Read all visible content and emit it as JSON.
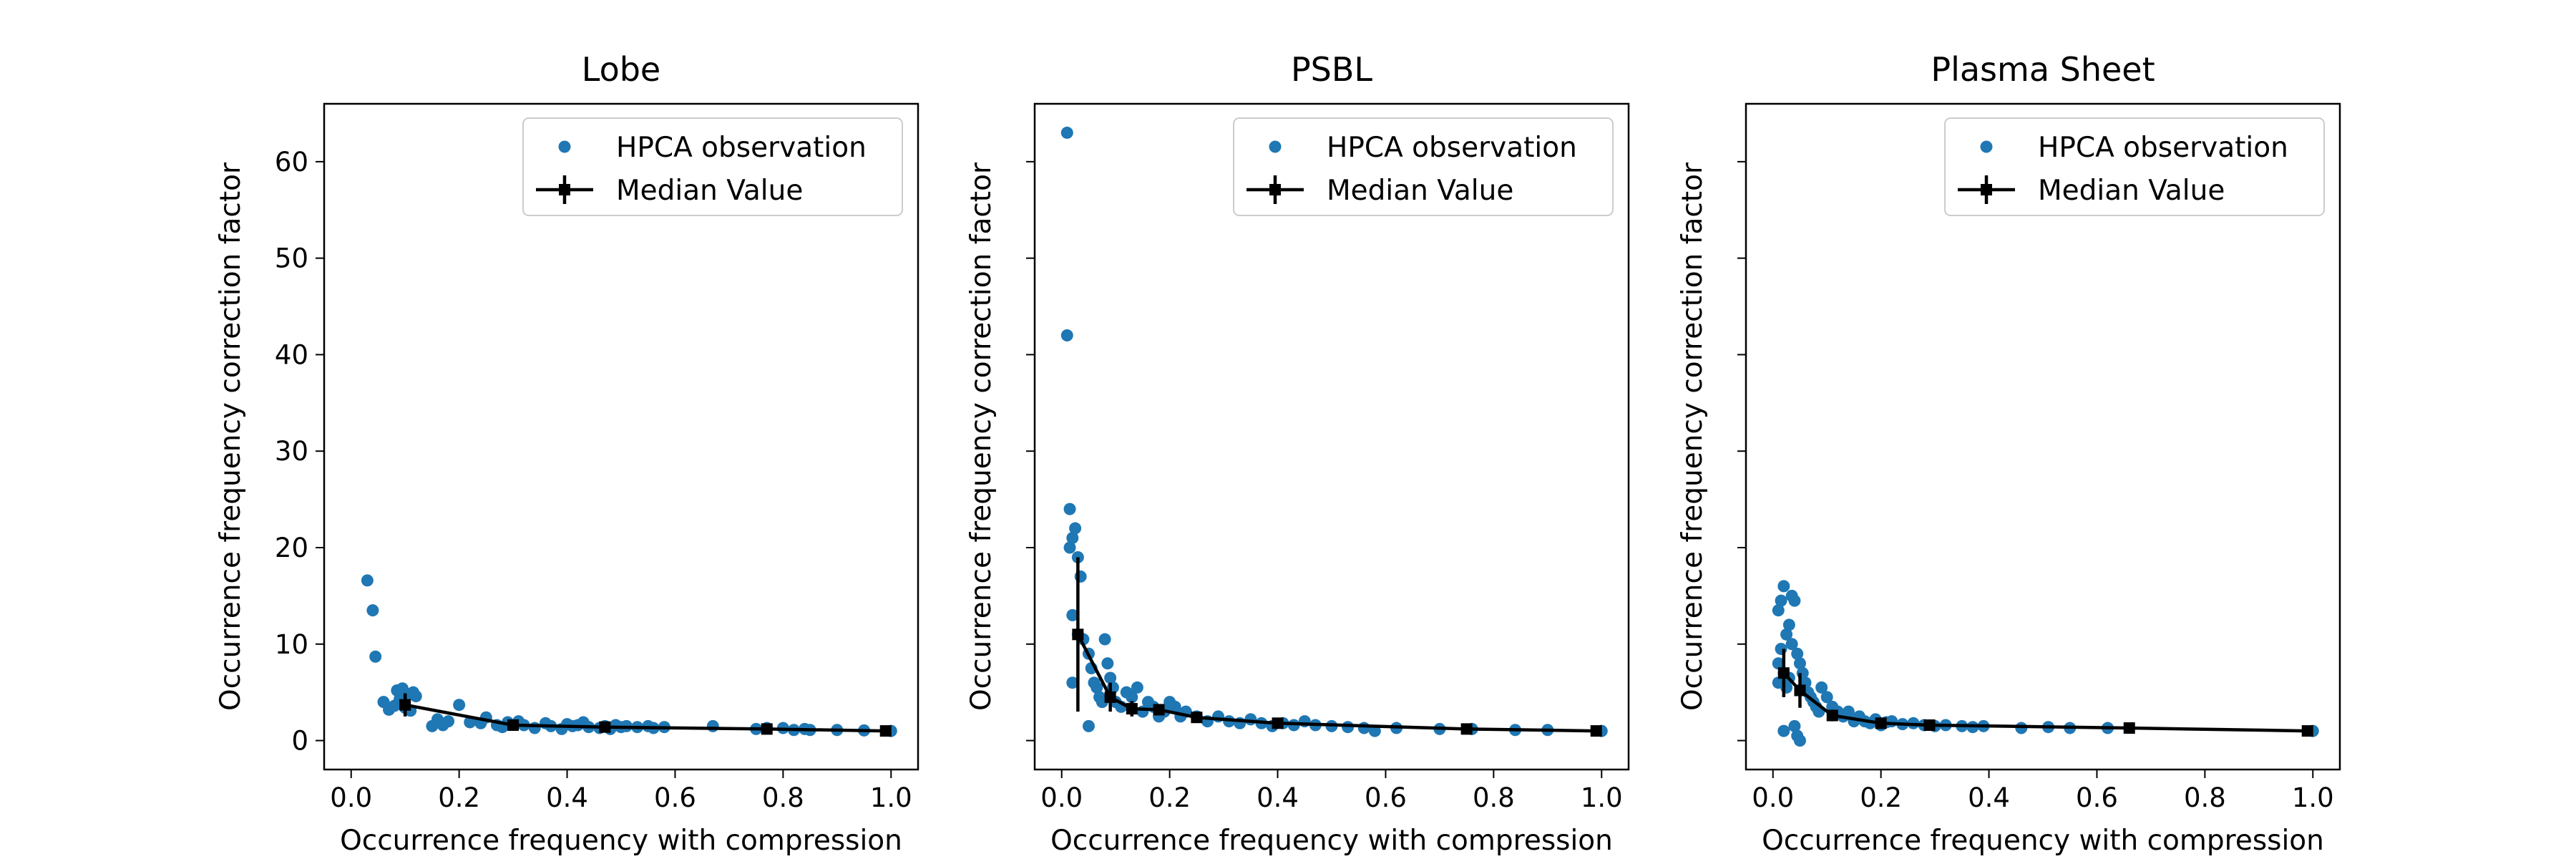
{
  "colors": {
    "scatter": "#1f77b4",
    "median": "#000000"
  },
  "chart_data": [
    {
      "type": "scatter",
      "title": "Lobe",
      "xlabel": "Occurrence frequency with compression",
      "ylabel": "Occurrence frequency correction factor",
      "xlim": [
        -0.05,
        1.05
      ],
      "ylim": [
        -3,
        66
      ],
      "xticks": [
        0.0,
        0.2,
        0.4,
        0.6,
        0.8,
        1.0
      ],
      "xtick_labels": [
        "0.0",
        "0.2",
        "0.4",
        "0.6",
        "0.8",
        "1.0"
      ],
      "yticks": [
        0,
        10,
        20,
        30,
        40,
        50,
        60
      ],
      "ytick_labels": [
        "0",
        "10",
        "20",
        "30",
        "40",
        "50",
        "60"
      ],
      "show_ytick_labels": true,
      "legend": {
        "position": "top-right",
        "entries": [
          "HPCA observation",
          "Median Value"
        ]
      },
      "series": [
        {
          "name": "HPCA observation",
          "points": [
            [
              0.03,
              16.6
            ],
            [
              0.04,
              13.5
            ],
            [
              0.045,
              8.7
            ],
            [
              0.06,
              4.0
            ],
            [
              0.07,
              3.2
            ],
            [
              0.08,
              3.6
            ],
            [
              0.085,
              5.2
            ],
            [
              0.09,
              4.3
            ],
            [
              0.095,
              5.4
            ],
            [
              0.1,
              3.4
            ],
            [
              0.105,
              4.8
            ],
            [
              0.11,
              3.1
            ],
            [
              0.115,
              5.0
            ],
            [
              0.12,
              4.6
            ],
            [
              0.15,
              1.5
            ],
            [
              0.16,
              2.2
            ],
            [
              0.17,
              1.6
            ],
            [
              0.18,
              2.0
            ],
            [
              0.2,
              3.7
            ],
            [
              0.22,
              1.9
            ],
            [
              0.24,
              1.8
            ],
            [
              0.25,
              2.4
            ],
            [
              0.27,
              1.6
            ],
            [
              0.28,
              1.4
            ],
            [
              0.29,
              1.9
            ],
            [
              0.31,
              2.0
            ],
            [
              0.32,
              1.6
            ],
            [
              0.34,
              1.3
            ],
            [
              0.36,
              1.8
            ],
            [
              0.37,
              1.5
            ],
            [
              0.39,
              1.2
            ],
            [
              0.4,
              1.7
            ],
            [
              0.41,
              1.5
            ],
            [
              0.42,
              1.6
            ],
            [
              0.43,
              1.9
            ],
            [
              0.44,
              1.4
            ],
            [
              0.46,
              1.3
            ],
            [
              0.47,
              1.5
            ],
            [
              0.48,
              1.2
            ],
            [
              0.49,
              1.6
            ],
            [
              0.5,
              1.4
            ],
            [
              0.51,
              1.5
            ],
            [
              0.53,
              1.4
            ],
            [
              0.55,
              1.5
            ],
            [
              0.56,
              1.3
            ],
            [
              0.58,
              1.4
            ],
            [
              0.67,
              1.5
            ],
            [
              0.75,
              1.2
            ],
            [
              0.77,
              1.3
            ],
            [
              0.8,
              1.3
            ],
            [
              0.82,
              1.1
            ],
            [
              0.84,
              1.2
            ],
            [
              0.85,
              1.1
            ],
            [
              0.9,
              1.1
            ],
            [
              0.95,
              1.05
            ],
            [
              1.0,
              1.0
            ]
          ]
        },
        {
          "name": "Median Value",
          "points": [
            [
              0.1,
              3.7
            ],
            [
              0.3,
              1.6
            ],
            [
              0.47,
              1.4
            ],
            [
              0.77,
              1.2
            ],
            [
              0.99,
              1.0
            ]
          ],
          "errors": [
            1.2,
            0.4,
            0.3,
            0.2,
            0.1
          ]
        }
      ]
    },
    {
      "type": "scatter",
      "title": "PSBL",
      "xlabel": "Occurrence frequency with compression",
      "ylabel": "Occurrence frequency correction factor",
      "xlim": [
        -0.05,
        1.05
      ],
      "ylim": [
        -3,
        66
      ],
      "xticks": [
        0.0,
        0.2,
        0.4,
        0.6,
        0.8,
        1.0
      ],
      "xtick_labels": [
        "0.0",
        "0.2",
        "0.4",
        "0.6",
        "0.8",
        "1.0"
      ],
      "yticks": [
        0,
        10,
        20,
        30,
        40,
        50,
        60
      ],
      "ytick_labels": [],
      "show_ytick_labels": false,
      "legend": {
        "position": "top-right",
        "entries": [
          "HPCA observation",
          "Median Value"
        ]
      },
      "series": [
        {
          "name": "HPCA observation",
          "points": [
            [
              0.01,
              63.0
            ],
            [
              0.01,
              42.0
            ],
            [
              0.015,
              24.0
            ],
            [
              0.015,
              20.0
            ],
            [
              0.02,
              21.0
            ],
            [
              0.025,
              22.0
            ],
            [
              0.03,
              19.0
            ],
            [
              0.035,
              17.0
            ],
            [
              0.02,
              13.0
            ],
            [
              0.03,
              11.0
            ],
            [
              0.02,
              6.0
            ],
            [
              0.04,
              10.5
            ],
            [
              0.05,
              9.0
            ],
            [
              0.055,
              7.5
            ],
            [
              0.06,
              6.0
            ],
            [
              0.065,
              5.5
            ],
            [
              0.07,
              4.5
            ],
            [
              0.075,
              4.0
            ],
            [
              0.08,
              10.5
            ],
            [
              0.085,
              8.0
            ],
            [
              0.09,
              6.5
            ],
            [
              0.095,
              5.5
            ],
            [
              0.05,
              1.5
            ],
            [
              0.1,
              4.0
            ],
            [
              0.11,
              3.5
            ],
            [
              0.12,
              5.0
            ],
            [
              0.13,
              4.5
            ],
            [
              0.14,
              5.5
            ],
            [
              0.15,
              3.0
            ],
            [
              0.16,
              4.0
            ],
            [
              0.17,
              3.5
            ],
            [
              0.18,
              2.5
            ],
            [
              0.19,
              3.0
            ],
            [
              0.2,
              4.0
            ],
            [
              0.21,
              3.5
            ],
            [
              0.22,
              2.5
            ],
            [
              0.23,
              3.0
            ],
            [
              0.25,
              2.5
            ],
            [
              0.27,
              2.0
            ],
            [
              0.29,
              2.5
            ],
            [
              0.31,
              2.0
            ],
            [
              0.33,
              1.8
            ],
            [
              0.35,
              2.2
            ],
            [
              0.37,
              1.8
            ],
            [
              0.39,
              1.5
            ],
            [
              0.41,
              1.8
            ],
            [
              0.43,
              1.6
            ],
            [
              0.45,
              2.0
            ],
            [
              0.47,
              1.6
            ],
            [
              0.5,
              1.5
            ],
            [
              0.53,
              1.4
            ],
            [
              0.56,
              1.3
            ],
            [
              0.58,
              1.0
            ],
            [
              0.62,
              1.3
            ],
            [
              0.7,
              1.2
            ],
            [
              0.76,
              1.2
            ],
            [
              0.84,
              1.1
            ],
            [
              0.9,
              1.1
            ],
            [
              1.0,
              1.0
            ]
          ]
        },
        {
          "name": "Median Value",
          "points": [
            [
              0.03,
              11.0
            ],
            [
              0.09,
              4.5
            ],
            [
              0.13,
              3.3
            ],
            [
              0.18,
              3.2
            ],
            [
              0.25,
              2.4
            ],
            [
              0.4,
              1.8
            ],
            [
              0.75,
              1.2
            ],
            [
              0.99,
              1.0
            ]
          ],
          "errors": [
            8.0,
            1.5,
            0.8,
            0.5,
            0.3,
            0.2,
            0.1,
            0.05
          ]
        }
      ]
    },
    {
      "type": "scatter",
      "title": "Plasma Sheet",
      "xlabel": "Occurrence frequency with compression",
      "ylabel": "Occurrence frequency correction factor",
      "xlim": [
        -0.05,
        1.05
      ],
      "ylim": [
        -3,
        66
      ],
      "xticks": [
        0.0,
        0.2,
        0.4,
        0.6,
        0.8,
        1.0
      ],
      "xtick_labels": [
        "0.0",
        "0.2",
        "0.4",
        "0.6",
        "0.8",
        "1.0"
      ],
      "yticks": [
        0,
        10,
        20,
        30,
        40,
        50,
        60
      ],
      "ytick_labels": [],
      "show_ytick_labels": false,
      "legend": {
        "position": "top-right",
        "entries": [
          "HPCA observation",
          "Median Value"
        ]
      },
      "series": [
        {
          "name": "HPCA observation",
          "points": [
            [
              0.01,
              13.5
            ],
            [
              0.015,
              14.5
            ],
            [
              0.02,
              16.0
            ],
            [
              0.025,
              11.0
            ],
            [
              0.03,
              12.0
            ],
            [
              0.01,
              8.0
            ],
            [
              0.015,
              9.5
            ],
            [
              0.02,
              7.0
            ],
            [
              0.01,
              6.0
            ],
            [
              0.025,
              5.5
            ],
            [
              0.03,
              6.5
            ],
            [
              0.035,
              15.0
            ],
            [
              0.04,
              14.5
            ],
            [
              0.035,
              10.0
            ],
            [
              0.045,
              9.0
            ],
            [
              0.05,
              8.0
            ],
            [
              0.055,
              7.0
            ],
            [
              0.02,
              1.0
            ],
            [
              0.04,
              1.5
            ],
            [
              0.045,
              0.5
            ],
            [
              0.05,
              0.0
            ],
            [
              0.06,
              6.0
            ],
            [
              0.065,
              5.0
            ],
            [
              0.07,
              4.5
            ],
            [
              0.075,
              4.0
            ],
            [
              0.08,
              3.5
            ],
            [
              0.085,
              3.0
            ],
            [
              0.09,
              5.5
            ],
            [
              0.1,
              4.5
            ],
            [
              0.11,
              3.5
            ],
            [
              0.12,
              3.0
            ],
            [
              0.13,
              2.5
            ],
            [
              0.14,
              3.0
            ],
            [
              0.15,
              2.0
            ],
            [
              0.16,
              2.5
            ],
            [
              0.17,
              2.0
            ],
            [
              0.18,
              1.8
            ],
            [
              0.19,
              2.2
            ],
            [
              0.2,
              1.6
            ],
            [
              0.21,
              1.9
            ],
            [
              0.22,
              2.0
            ],
            [
              0.24,
              1.7
            ],
            [
              0.26,
              1.8
            ],
            [
              0.28,
              1.6
            ],
            [
              0.3,
              1.5
            ],
            [
              0.32,
              1.6
            ],
            [
              0.35,
              1.5
            ],
            [
              0.37,
              1.4
            ],
            [
              0.39,
              1.5
            ],
            [
              0.46,
              1.3
            ],
            [
              0.51,
              1.4
            ],
            [
              0.55,
              1.3
            ],
            [
              0.62,
              1.3
            ],
            [
              1.0,
              1.0
            ]
          ]
        },
        {
          "name": "Median Value",
          "points": [
            [
              0.02,
              7.0
            ],
            [
              0.05,
              5.2
            ],
            [
              0.11,
              2.6
            ],
            [
              0.2,
              1.8
            ],
            [
              0.29,
              1.6
            ],
            [
              0.66,
              1.3
            ],
            [
              0.99,
              1.0
            ]
          ],
          "errors": [
            2.5,
            1.8,
            0.6,
            0.3,
            0.2,
            0.1,
            0.05
          ]
        }
      ]
    }
  ]
}
